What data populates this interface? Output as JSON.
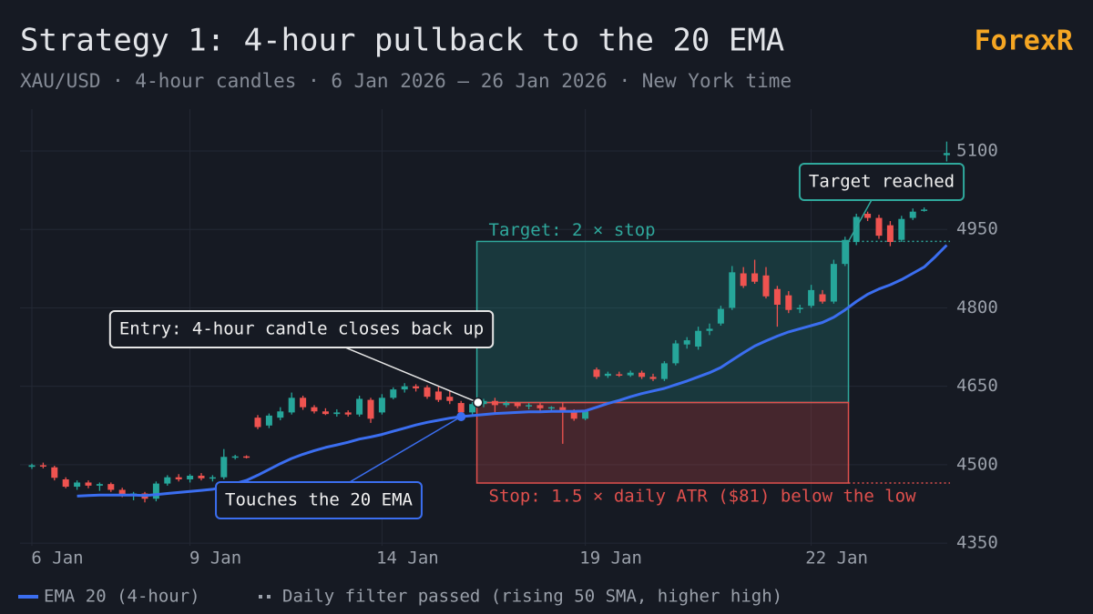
{
  "chart_data": {
    "type": "candlestick",
    "title": "Strategy 1: 4-hour pullback to the 20 EMA",
    "subtitle": "XAU/USD · 4-hour candles · 6 Jan 2026 – 26 Jan 2026 · New York time",
    "brand": "ForexR",
    "categories": [
      "6 Jan",
      null,
      null,
      null,
      null,
      null,
      null,
      null,
      null,
      null,
      null,
      null,
      null,
      null,
      "9 Jan",
      null,
      null,
      null,
      null,
      null,
      null,
      null,
      null,
      null,
      null,
      null,
      null,
      null,
      null,
      null,
      null,
      "14 Jan",
      null,
      null,
      null,
      null,
      null,
      null,
      null,
      null,
      null,
      null,
      null,
      null,
      null,
      null,
      null,
      null,
      null,
      "19 Jan",
      null,
      null,
      null,
      null,
      null,
      null,
      null,
      null,
      null,
      null,
      null,
      null,
      null,
      null,
      null,
      null,
      null,
      null,
      null,
      "22 Jan",
      null,
      null,
      null,
      null,
      null,
      null,
      null,
      null,
      null,
      null,
      null,
      null
    ],
    "open": [
      4496,
      4499,
      4495,
      4472,
      4458,
      4466,
      4460,
      4463,
      4452,
      4442,
      4445,
      4435,
      4464,
      4476,
      4472,
      4479,
      4474,
      4476,
      4514,
      4516,
      4590,
      4575,
      4590,
      4600,
      4628,
      4610,
      4602,
      4597,
      4600,
      4596,
      4624,
      4600,
      4628,
      4644,
      4650,
      4648,
      4640,
      4630,
      4618,
      4600,
      4616,
      4622,
      4614,
      4618,
      4612,
      4614,
      4608,
      4610,
      4600,
      4588,
      4682,
      4670,
      4673,
      4671,
      4676,
      4668,
      4664,
      4694,
      4730,
      4726,
      4756,
      4770,
      4800,
      4866,
      4866,
      4862,
      4836,
      4824,
      4798,
      4804,
      4826,
      4812,
      4884,
      4926,
      4980,
      4972,
      4958,
      4930,
      4972,
      4986,
      null,
      5092
    ],
    "high": [
      4502,
      4504,
      4498,
      4476,
      4470,
      4470,
      4466,
      4466,
      4456,
      4448,
      4448,
      4468,
      4480,
      4482,
      4482,
      4484,
      4480,
      4530,
      4519,
      4518,
      4595,
      4598,
      4610,
      4638,
      4632,
      4614,
      4608,
      4606,
      4604,
      4632,
      4628,
      4635,
      4648,
      4656,
      4654,
      4652,
      4650,
      4642,
      4622,
      4620,
      4626,
      4628,
      4622,
      4620,
      4618,
      4618,
      4612,
      4620,
      4606,
      4604,
      4686,
      4678,
      4678,
      4680,
      4680,
      4674,
      4698,
      4738,
      4744,
      4764,
      4770,
      4804,
      4880,
      4878,
      4892,
      4878,
      4842,
      4832,
      4806,
      4844,
      4834,
      4892,
      4936,
      4980,
      4984,
      4978,
      4966,
      4976,
      4990,
      4992,
      null,
      5118
    ],
    "low": [
      4492,
      4493,
      4470,
      4455,
      4452,
      4455,
      4450,
      4448,
      4438,
      4432,
      4428,
      4430,
      4460,
      4468,
      4466,
      4470,
      4468,
      4472,
      4510,
      4512,
      4568,
      4570,
      4585,
      4596,
      4605,
      4598,
      4595,
      4592,
      4592,
      4592,
      4580,
      4596,
      4625,
      4638,
      4640,
      4626,
      4620,
      4616,
      4596,
      4596,
      4610,
      4600,
      4610,
      4608,
      4606,
      4602,
      4600,
      4540,
      4584,
      4585,
      4664,
      4666,
      4668,
      4668,
      4664,
      4660,
      4660,
      4690,
      4722,
      4720,
      4748,
      4766,
      4796,
      4838,
      4846,
      4818,
      4764,
      4790,
      4790,
      4800,
      4808,
      4808,
      4880,
      4920,
      4966,
      4932,
      4918,
      4926,
      4968,
      4984,
      null,
      5080
    ],
    "close": [
      4499,
      4497,
      4475,
      4458,
      4466,
      4460,
      4463,
      4452,
      4442,
      4445,
      4435,
      4464,
      4476,
      4472,
      4479,
      4474,
      4476,
      4515,
      4516,
      4515,
      4572,
      4594,
      4602,
      4628,
      4610,
      4602,
      4597,
      4600,
      4596,
      4626,
      4588,
      4628,
      4644,
      4650,
      4646,
      4630,
      4624,
      4622,
      4600,
      4616,
      4622,
      4614,
      4618,
      4612,
      4614,
      4608,
      4610,
      4600,
      4588,
      4602,
      4668,
      4674,
      4671,
      4676,
      4668,
      4664,
      4694,
      4732,
      4738,
      4756,
      4760,
      4798,
      4868,
      4842,
      4850,
      4822,
      4806,
      4796,
      4800,
      4834,
      4812,
      4884,
      4930,
      4974,
      4972,
      4938,
      4926,
      4970,
      4984,
      4988,
      null,
      5096
    ],
    "up_color": "#26a69a",
    "down_color": "#ef5350",
    "series": [
      {
        "name": "EMA 20 (4-hour)",
        "color": "#3b6ef0",
        "values": [
          null,
          null,
          null,
          null,
          4440,
          4441,
          4442,
          4442,
          4442,
          4442,
          4441,
          4443,
          4445,
          4447,
          4449,
          4451,
          4453,
          4458,
          4464,
          4470,
          4480,
          4491,
          4502,
          4512,
          4520,
          4527,
          4533,
          4538,
          4543,
          4549,
          4553,
          4558,
          4564,
          4570,
          4576,
          4581,
          4585,
          4589,
          4592,
          4594,
          4596,
          4598,
          4599,
          4600,
          4601,
          4601,
          4602,
          4602,
          4602,
          4603,
          4610,
          4617,
          4623,
          4630,
          4636,
          4641,
          4646,
          4653,
          4660,
          4668,
          4676,
          4686,
          4700,
          4714,
          4727,
          4737,
          4746,
          4754,
          4760,
          4766,
          4772,
          4782,
          4796,
          4812,
          4826,
          4836,
          4844,
          4854,
          4866,
          4878,
          4898,
          4920
        ]
      }
    ],
    "filter_legend": "Daily filter passed (rising 50 SMA, higher high)",
    "trade": {
      "entry": 4619,
      "stop": 4465,
      "target": 4927
    },
    "annotations": {
      "target_label": "Target: 2 × stop",
      "stop_label": "Stop: 1.5 × daily ATR ($81) below the low",
      "entry_callout": "Entry: 4-hour candle closes back up",
      "touch_callout": "Touches the 20 EMA",
      "target_callout": "Target reached"
    },
    "ylim": [
      4345,
      5180
    ],
    "yticks": [
      4350,
      4500,
      4650,
      4800,
      4950,
      5100
    ],
    "grid": true
  }
}
